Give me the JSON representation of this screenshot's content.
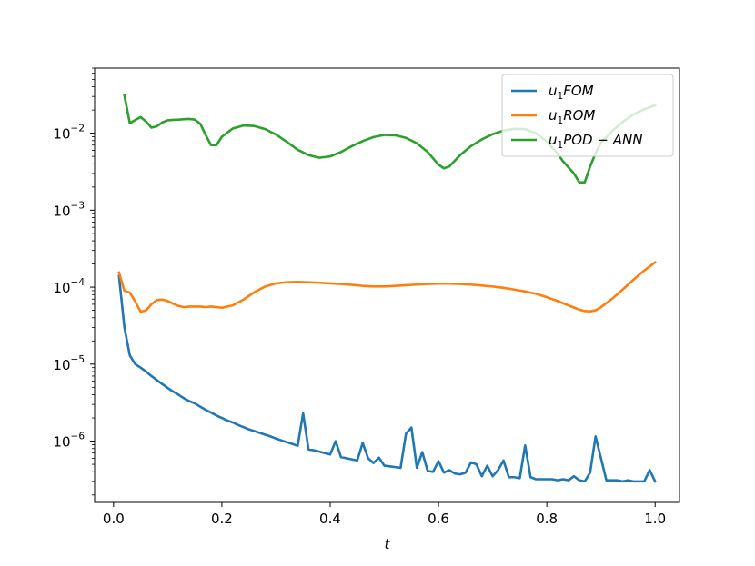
{
  "chart_data": {
    "type": "line",
    "title": "",
    "xlabel": "t",
    "ylabel": "",
    "xlim": [
      -0.035,
      1.045
    ],
    "ylim": [
      1.6e-07,
      0.07
    ],
    "yscale": "log",
    "grid": false,
    "legend_position": "top-right",
    "x_ticks": [
      0.0,
      0.2,
      0.4,
      0.6,
      0.8,
      1.0
    ],
    "x_tick_labels": [
      "0.0",
      "0.2",
      "0.4",
      "0.6",
      "0.8",
      "1.0"
    ],
    "y_ticks": [
      1e-06,
      1e-05,
      0.0001,
      0.001,
      0.01
    ],
    "y_tick_labels": [
      {
        "base": "10",
        "exp": "−6"
      },
      {
        "base": "10",
        "exp": "−5"
      },
      {
        "base": "10",
        "exp": "−4"
      },
      {
        "base": "10",
        "exp": "−3"
      },
      {
        "base": "10",
        "exp": "−2"
      }
    ],
    "series": [
      {
        "name": "u₁FOM",
        "legend": {
          "base": "u",
          "sub": "1",
          "rest": "FOM"
        },
        "color": "#1f77b4",
        "x": [
          0.01,
          0.02,
          0.03,
          0.04,
          0.05,
          0.06,
          0.07,
          0.08,
          0.09,
          0.1,
          0.11,
          0.12,
          0.13,
          0.14,
          0.15,
          0.16,
          0.17,
          0.18,
          0.19,
          0.2,
          0.21,
          0.22,
          0.23,
          0.24,
          0.25,
          0.26,
          0.27,
          0.28,
          0.29,
          0.3,
          0.31,
          0.32,
          0.33,
          0.34,
          0.35,
          0.36,
          0.37,
          0.38,
          0.39,
          0.4,
          0.41,
          0.42,
          0.43,
          0.44,
          0.45,
          0.46,
          0.47,
          0.48,
          0.49,
          0.5,
          0.51,
          0.52,
          0.53,
          0.54,
          0.55,
          0.56,
          0.57,
          0.58,
          0.59,
          0.6,
          0.61,
          0.62,
          0.63,
          0.64,
          0.65,
          0.66,
          0.67,
          0.68,
          0.69,
          0.7,
          0.71,
          0.72,
          0.73,
          0.74,
          0.75,
          0.76,
          0.77,
          0.78,
          0.79,
          0.8,
          0.81,
          0.82,
          0.83,
          0.84,
          0.85,
          0.86,
          0.87,
          0.88,
          0.89,
          0.9,
          0.91,
          0.92,
          0.93,
          0.94,
          0.95,
          0.96,
          0.97,
          0.98,
          0.99,
          1.0
        ],
        "y": [
          0.00014,
          3e-05,
          1.3e-05,
          1e-05,
          9e-06,
          8e-06,
          7e-06,
          6.2e-06,
          5.5e-06,
          4.9e-06,
          4.4e-06,
          4e-06,
          3.6e-06,
          3.3e-06,
          3.1e-06,
          2.8e-06,
          2.55e-06,
          2.35e-06,
          2.15e-06,
          2e-06,
          1.85e-06,
          1.75e-06,
          1.62e-06,
          1.52e-06,
          1.42e-06,
          1.35e-06,
          1.28e-06,
          1.21e-06,
          1.15e-06,
          1.08e-06,
          1.02e-06,
          9.7e-07,
          9.2e-07,
          8.7e-07,
          2.3e-06,
          7.8e-07,
          7.6e-07,
          7.3e-07,
          7e-07,
          6.7e-07,
          1e-06,
          6.2e-07,
          6e-07,
          5.8e-07,
          5.6e-07,
          9.5e-07,
          6e-07,
          5.2e-07,
          6.1e-07,
          4.8e-07,
          4.7e-07,
          4.6e-07,
          4.5e-07,
          1.25e-06,
          1.5e-06,
          4.5e-07,
          7.2e-07,
          4.1e-07,
          4e-07,
          5.5e-07,
          3.9e-07,
          4.2e-07,
          3.8e-07,
          3.7e-07,
          3.9e-07,
          5.3e-07,
          5e-07,
          3.5e-07,
          4.8e-07,
          3.5e-07,
          4.2e-07,
          5.6e-07,
          3.4e-07,
          3.4e-07,
          3.3e-07,
          8.8e-07,
          3.4e-07,
          3.2e-07,
          3.2e-07,
          3.2e-07,
          3.2e-07,
          3.1e-07,
          3.2e-07,
          3.1e-07,
          3.5e-07,
          3.1e-07,
          3e-07,
          3.9e-07,
          1.15e-06,
          6e-07,
          3.1e-07,
          3.1e-07,
          3.1e-07,
          3e-07,
          3.1e-07,
          3e-07,
          3e-07,
          3e-07,
          4.2e-07,
          3e-07
        ]
      },
      {
        "name": "u₁ROM",
        "legend": {
          "base": "u",
          "sub": "1",
          "rest": "ROM"
        },
        "color": "#ff7f0e",
        "x": [
          0.01,
          0.02,
          0.03,
          0.04,
          0.05,
          0.06,
          0.07,
          0.08,
          0.09,
          0.1,
          0.11,
          0.12,
          0.13,
          0.14,
          0.15,
          0.16,
          0.17,
          0.18,
          0.19,
          0.2,
          0.22,
          0.24,
          0.26,
          0.28,
          0.3,
          0.32,
          0.34,
          0.36,
          0.38,
          0.4,
          0.42,
          0.44,
          0.46,
          0.48,
          0.5,
          0.52,
          0.54,
          0.56,
          0.58,
          0.6,
          0.62,
          0.64,
          0.66,
          0.68,
          0.7,
          0.72,
          0.74,
          0.76,
          0.78,
          0.8,
          0.82,
          0.84,
          0.86,
          0.87,
          0.88,
          0.89,
          0.9,
          0.92,
          0.94,
          0.96,
          0.98,
          1.0
        ],
        "y": [
          0.000155,
          9e-05,
          8.5e-05,
          6.5e-05,
          4.8e-05,
          5e-05,
          6e-05,
          6.8e-05,
          6.9e-05,
          6.6e-05,
          6.1e-05,
          5.7e-05,
          5.5e-05,
          5.6e-05,
          5.6e-05,
          5.6e-05,
          5.5e-05,
          5.6e-05,
          5.5e-05,
          5.4e-05,
          5.8e-05,
          6.9e-05,
          8.6e-05,
          0.000102,
          0.000112,
          0.000116,
          0.000117,
          0.000116,
          0.000114,
          0.000112,
          0.00011,
          0.000107,
          0.000104,
          0.000102,
          0.000102,
          0.000104,
          0.000106,
          0.000108,
          0.00011,
          0.000111,
          0.000111,
          0.00011,
          0.000108,
          0.000105,
          0.000102,
          9.8e-05,
          9.3e-05,
          8.8e-05,
          8.2e-05,
          7.4e-05,
          6.6e-05,
          5.8e-05,
          5.1e-05,
          4.9e-05,
          4.85e-05,
          5e-05,
          5.5e-05,
          7e-05,
          9.3e-05,
          0.000125,
          0.000165,
          0.00021
        ]
      },
      {
        "name": "u₁POD − ANN",
        "legend": {
          "base": "u",
          "sub": "1",
          "rest": "POD − ANN"
        },
        "color": "#2ca02c",
        "x": [
          0.02,
          0.03,
          0.04,
          0.05,
          0.06,
          0.07,
          0.08,
          0.09,
          0.1,
          0.11,
          0.12,
          0.13,
          0.14,
          0.15,
          0.16,
          0.17,
          0.18,
          0.19,
          0.2,
          0.22,
          0.24,
          0.26,
          0.28,
          0.3,
          0.32,
          0.34,
          0.36,
          0.38,
          0.4,
          0.42,
          0.44,
          0.46,
          0.48,
          0.5,
          0.52,
          0.54,
          0.56,
          0.58,
          0.6,
          0.61,
          0.62,
          0.64,
          0.66,
          0.68,
          0.7,
          0.72,
          0.74,
          0.76,
          0.78,
          0.8,
          0.82,
          0.83,
          0.84,
          0.85,
          0.86,
          0.87,
          0.88,
          0.89,
          0.9,
          0.92,
          0.94,
          0.96,
          0.98,
          1.0
        ],
        "y": [
          0.031,
          0.0135,
          0.0148,
          0.0162,
          0.0142,
          0.0118,
          0.0123,
          0.0138,
          0.0147,
          0.0149,
          0.015,
          0.0152,
          0.0153,
          0.015,
          0.0133,
          0.0095,
          0.007,
          0.007,
          0.009,
          0.0115,
          0.0126,
          0.0124,
          0.0113,
          0.0096,
          0.0077,
          0.0061,
          0.0052,
          0.0048,
          0.005,
          0.0057,
          0.0068,
          0.0079,
          0.0089,
          0.0095,
          0.0094,
          0.0087,
          0.0074,
          0.0057,
          0.0039,
          0.0035,
          0.0037,
          0.0052,
          0.0068,
          0.0083,
          0.0097,
          0.0108,
          0.0114,
          0.0113,
          0.01,
          0.0078,
          0.0054,
          0.0043,
          0.0036,
          0.003,
          0.0023,
          0.0023,
          0.0037,
          0.0055,
          0.0075,
          0.0105,
          0.014,
          0.0175,
          0.0205,
          0.023
        ]
      }
    ]
  }
}
